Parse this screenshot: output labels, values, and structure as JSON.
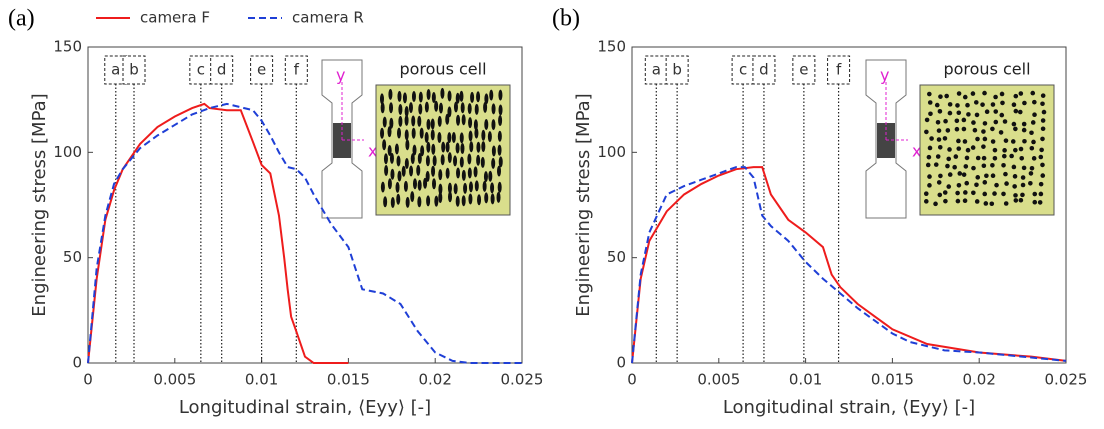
{
  "chart_data": [
    {
      "type": "line",
      "panel_label": "(a)",
      "x_label": "Longitudinal strain, ⟨Eyy⟩ [-]",
      "y_label": "Engineering stress [MPa]",
      "xlim": [
        0,
        0.025
      ],
      "xticks": [
        0,
        0.005,
        0.01,
        0.015,
        0.02,
        0.025
      ],
      "ylim": [
        0,
        150
      ],
      "yticks": [
        0,
        50,
        100,
        150
      ],
      "legend": "top",
      "series": [
        {
          "name": "camera F",
          "color": "#ee1c1c",
          "linestyle": "solid",
          "x": [
            0,
            0.0005,
            0.001,
            0.0015,
            0.002,
            0.003,
            0.004,
            0.005,
            0.006,
            0.0067,
            0.007,
            0.008,
            0.0088,
            0.0095,
            0.01,
            0.0105,
            0.011,
            0.0113,
            0.0115,
            0.0117,
            0.012,
            0.0125,
            0.013,
            0.015
          ],
          "values": [
            0,
            40,
            68,
            82,
            92,
            104,
            112,
            117,
            121,
            123,
            121,
            120,
            120,
            105,
            94,
            90,
            70,
            50,
            35,
            22,
            15,
            3,
            0,
            0
          ]
        },
        {
          "name": "camera R",
          "color": "#1f3fd6",
          "linestyle": "dashed",
          "x": [
            0,
            0.0005,
            0.001,
            0.0015,
            0.002,
            0.003,
            0.004,
            0.005,
            0.006,
            0.007,
            0.008,
            0.009,
            0.0095,
            0.01,
            0.0105,
            0.011,
            0.0115,
            0.012,
            0.0125,
            0.013,
            0.014,
            0.015,
            0.0158,
            0.017,
            0.018,
            0.019,
            0.02,
            0.021,
            0.022,
            0.025
          ],
          "values": [
            0,
            45,
            70,
            85,
            92,
            102,
            108,
            113,
            118,
            121,
            123,
            121,
            120,
            115,
            108,
            100,
            93,
            92,
            88,
            80,
            66,
            55,
            35,
            33,
            28,
            15,
            5,
            1,
            0,
            0
          ]
        }
      ],
      "markers": [
        {
          "label": "a",
          "x": 0.0016
        },
        {
          "label": "b",
          "x": 0.00265
        },
        {
          "label": "c",
          "x": 0.0065
        },
        {
          "label": "d",
          "x": 0.0077
        },
        {
          "label": "e",
          "x": 0.01
        },
        {
          "label": "f",
          "x": 0.012
        }
      ],
      "inset": {
        "title": "porous cell",
        "x_axis": "x",
        "y_axis": "y"
      }
    },
    {
      "type": "line",
      "panel_label": "(b)",
      "x_label": "Longitudinal strain, ⟨Eyy⟩ [-]",
      "y_label": "Engineering stress [MPa]",
      "xlim": [
        0,
        0.025
      ],
      "xticks": [
        0,
        0.005,
        0.01,
        0.015,
        0.02,
        0.025
      ],
      "ylim": [
        0,
        150
      ],
      "yticks": [
        0,
        50,
        100,
        150
      ],
      "series": [
        {
          "color": "#ee1c1c",
          "linestyle": "solid",
          "x": [
            0,
            0.0005,
            0.001,
            0.002,
            0.003,
            0.004,
            0.005,
            0.006,
            0.007,
            0.0075,
            0.008,
            0.009,
            0.01,
            0.011,
            0.0115,
            0.012,
            0.013,
            0.014,
            0.015,
            0.017,
            0.02,
            0.023,
            0.025
          ],
          "values": [
            0,
            40,
            58,
            72,
            80,
            85,
            89,
            92,
            93,
            93,
            80,
            68,
            62,
            55,
            42,
            36,
            28,
            22,
            16,
            9,
            5,
            3,
            1
          ]
        },
        {
          "color": "#1f3fd6",
          "linestyle": "dashed",
          "x": [
            0,
            0.0005,
            0.001,
            0.002,
            0.003,
            0.004,
            0.005,
            0.006,
            0.0065,
            0.007,
            0.0075,
            0.008,
            0.009,
            0.01,
            0.011,
            0.012,
            0.013,
            0.014,
            0.015,
            0.016,
            0.018,
            0.02,
            0.025
          ],
          "values": [
            0,
            42,
            62,
            80,
            84,
            87,
            90,
            93,
            93,
            88,
            70,
            65,
            58,
            48,
            40,
            33,
            26,
            20,
            14,
            10,
            6,
            5,
            1
          ]
        }
      ],
      "markers": [
        {
          "label": "a",
          "x": 0.0014
        },
        {
          "label": "b",
          "x": 0.0026
        },
        {
          "label": "c",
          "x": 0.0064
        },
        {
          "label": "d",
          "x": 0.0076
        },
        {
          "label": "e",
          "x": 0.0099
        },
        {
          "label": "f",
          "x": 0.0119
        }
      ],
      "inset": {
        "title": "porous cell",
        "x_axis": "x",
        "y_axis": "y"
      }
    }
  ]
}
